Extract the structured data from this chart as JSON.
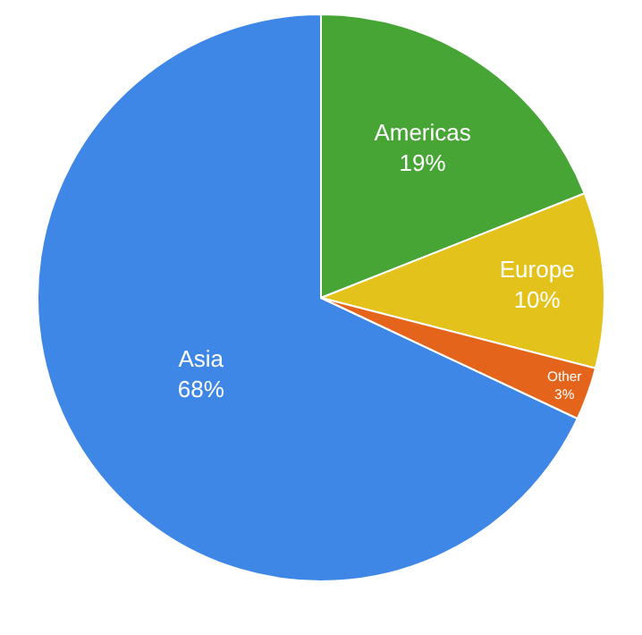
{
  "chart_data": {
    "type": "pie",
    "categories": [
      "Asia",
      "Americas",
      "Europe",
      "Other"
    ],
    "values": [
      68,
      19,
      10,
      3
    ],
    "value_labels": [
      "68%",
      "19%",
      "10%",
      "3%"
    ],
    "colors": [
      "#3f87e6",
      "#46a535",
      "#e4c21c",
      "#e5641b"
    ],
    "legend": false
  }
}
